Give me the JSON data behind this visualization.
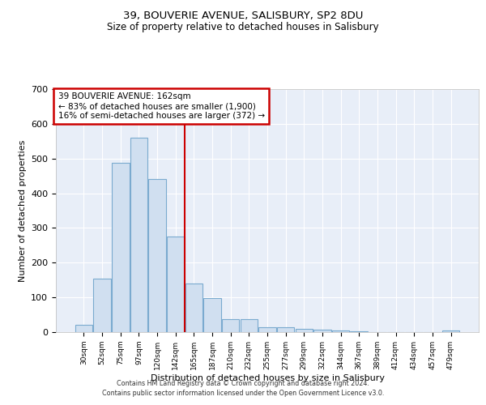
{
  "title1": "39, BOUVERIE AVENUE, SALISBURY, SP2 8DU",
  "title2": "Size of property relative to detached houses in Salisbury",
  "xlabel": "Distribution of detached houses by size in Salisbury",
  "ylabel": "Number of detached properties",
  "bar_color": "#d0dff0",
  "bar_edge_color": "#7aaacf",
  "background_color": "#e8eef8",
  "annotation_box_color": "#cc0000",
  "vline_color": "#cc0000",
  "grid_color": "#ffffff",
  "categories": [
    "30sqm",
    "52sqm",
    "75sqm",
    "97sqm",
    "120sqm",
    "142sqm",
    "165sqm",
    "187sqm",
    "210sqm",
    "232sqm",
    "255sqm",
    "277sqm",
    "299sqm",
    "322sqm",
    "344sqm",
    "367sqm",
    "389sqm",
    "412sqm",
    "434sqm",
    "457sqm",
    "479sqm"
  ],
  "values": [
    22,
    153,
    488,
    560,
    440,
    275,
    140,
    97,
    37,
    37,
    14,
    15,
    10,
    7,
    5,
    2,
    1,
    0,
    0,
    0,
    5
  ],
  "ylim": [
    0,
    700
  ],
  "yticks": [
    0,
    100,
    200,
    300,
    400,
    500,
    600,
    700
  ],
  "property_label": "39 BOUVERIE AVENUE: 162sqm",
  "annotation_line1": "← 83% of detached houses are smaller (1,900)",
  "annotation_line2": "16% of semi-detached houses are larger (372) →",
  "vline_x_index": 5.5,
  "footnote1": "Contains HM Land Registry data © Crown copyright and database right 2024.",
  "footnote2": "Contains public sector information licensed under the Open Government Licence v3.0."
}
